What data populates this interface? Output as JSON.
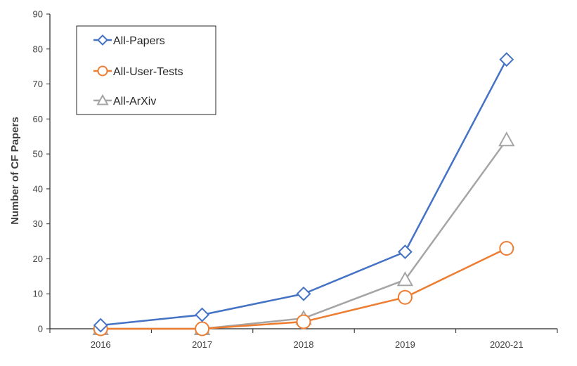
{
  "chart_data": {
    "type": "line",
    "title": "",
    "xlabel": "",
    "ylabel": "Number of CF  Papers",
    "categories": [
      "2016",
      "2017",
      "2018",
      "2019",
      "2020-21"
    ],
    "ylim": [
      0,
      90
    ],
    "yticks": [
      0,
      10,
      20,
      30,
      40,
      50,
      60,
      70,
      80,
      90
    ],
    "grid": false,
    "legend_position": "top-left",
    "series": [
      {
        "name": "All-Papers",
        "values": [
          1,
          4,
          10,
          22,
          77
        ],
        "color": "#4472C4",
        "marker": "diamond"
      },
      {
        "name": "All-User-Tests",
        "values": [
          0,
          0,
          2,
          9,
          23
        ],
        "color": "#ED7D31",
        "marker": "circle"
      },
      {
        "name": "All-ArXiv",
        "values": [
          0,
          0,
          3,
          14,
          54
        ],
        "color": "#A5A5A5",
        "marker": "triangle"
      }
    ]
  }
}
